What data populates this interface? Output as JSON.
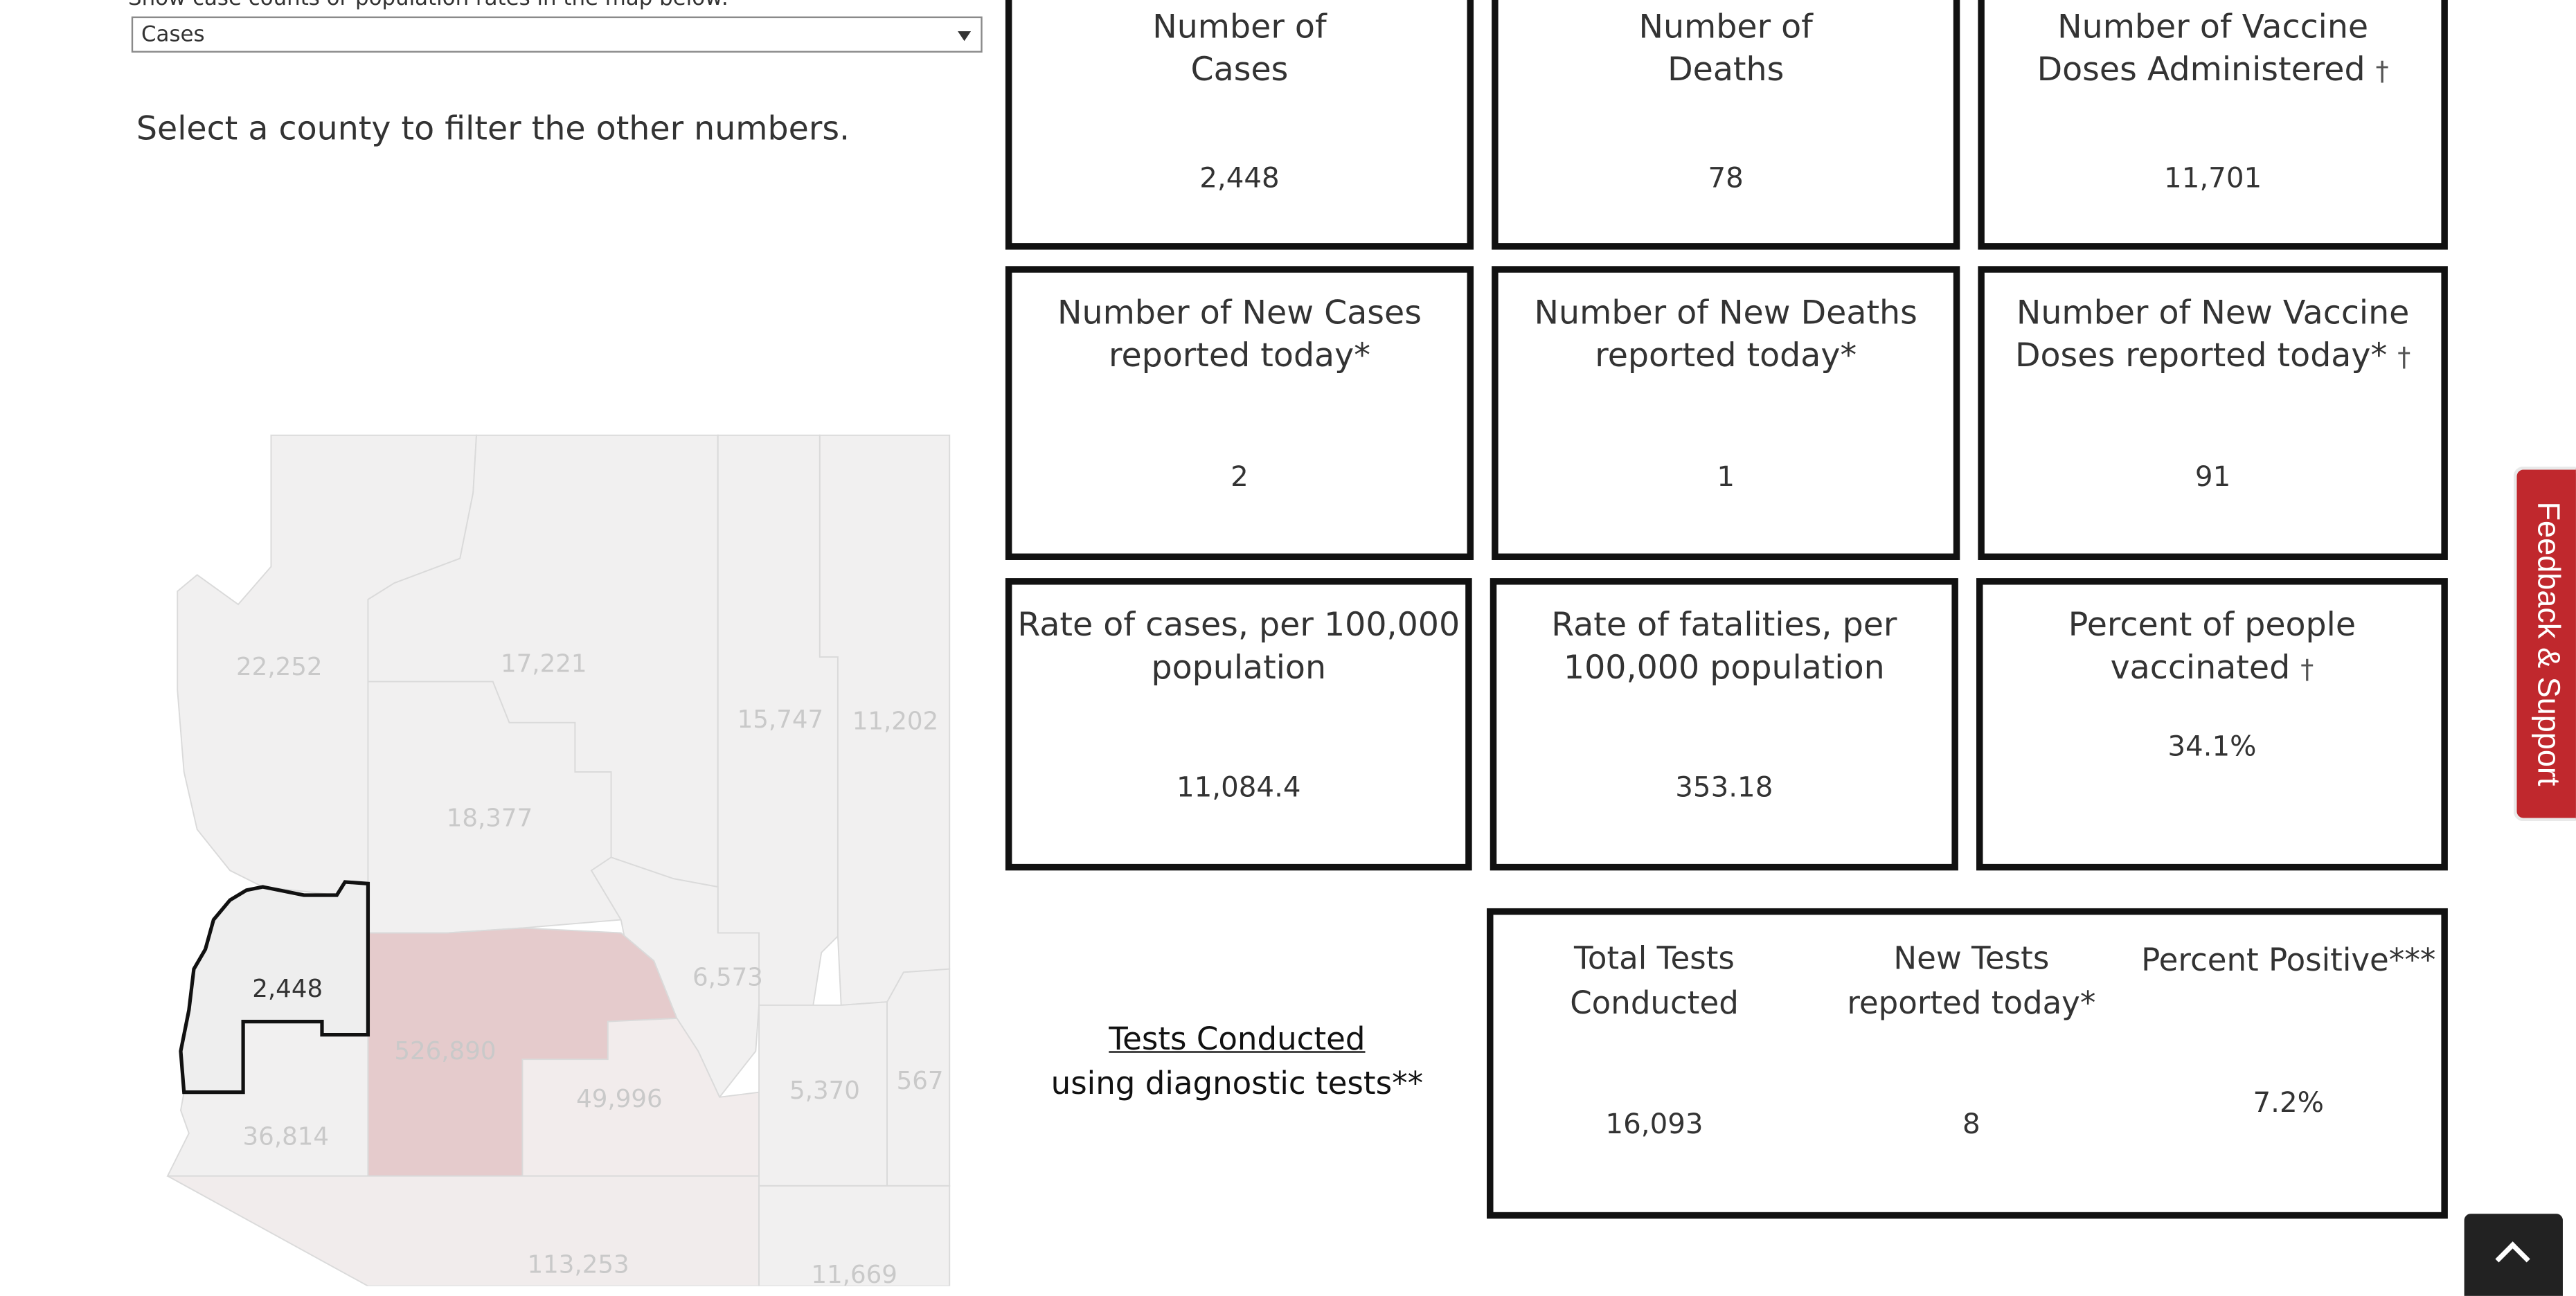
{
  "filter": {
    "label": "Show case counts or population rates in the map below:",
    "selected": "Cases",
    "instruction": "Select a county to filter the other numbers."
  },
  "map": {
    "selected_county_value": "2,448",
    "county_values": [
      "22,252",
      "17,221",
      "15,747",
      "11,202",
      "18,377",
      "6,573",
      "526,890",
      "49,996",
      "5,370",
      "567",
      "36,814",
      "113,253",
      "11,669"
    ],
    "colors": {
      "county_fill": "#f1f0f0",
      "highlight_fill": "#e5cbcc",
      "mid_fill": "#efe5e5",
      "selected_fill": "#eeeeee"
    }
  },
  "cards": [
    {
      "title1": "Number of",
      "title2": "Cases",
      "dagger": "",
      "value": "2,448"
    },
    {
      "title1": "Number of",
      "title2": "Deaths",
      "dagger": "",
      "value": "78"
    },
    {
      "title1": "Number of Vaccine",
      "title2": "Doses Administered",
      "dagger": "†",
      "value": "11,701"
    },
    {
      "title1": "Number of New Cases",
      "title2": "reported today*",
      "dagger": "",
      "value": "2"
    },
    {
      "title1": "Number of New Deaths",
      "title2": "reported today*",
      "dagger": "",
      "value": "1"
    },
    {
      "title1": "Number of New Vaccine",
      "title2": "Doses reported today*",
      "dagger": "†",
      "value": "91"
    },
    {
      "title1": "Rate of cases, per 100,000",
      "title2": "population",
      "dagger": "",
      "value": "11,084.4"
    },
    {
      "title1": "Rate of fatalities, per",
      "title2": "100,000 population",
      "dagger": "",
      "value": "353.18"
    },
    {
      "title1": "Percent of people vaccinated",
      "title2": "",
      "dagger": "†",
      "value": "34.1%"
    }
  ],
  "tests": {
    "heading": "Tests Conducted",
    "subheading": "using diagnostic tests**",
    "columns": [
      {
        "title1": "Total Tests",
        "title2": "Conducted",
        "value": "16,093"
      },
      {
        "title1": "New Tests",
        "title2": "reported today*",
        "value": "8"
      },
      {
        "title1": "Percent Positive***",
        "title2": "",
        "value": "7.2%"
      }
    ]
  },
  "feedback": {
    "label": "Feedback & Support"
  },
  "icons": {
    "dropdown": "chevron-down-icon",
    "back_to_top": "chevron-up-icon"
  }
}
